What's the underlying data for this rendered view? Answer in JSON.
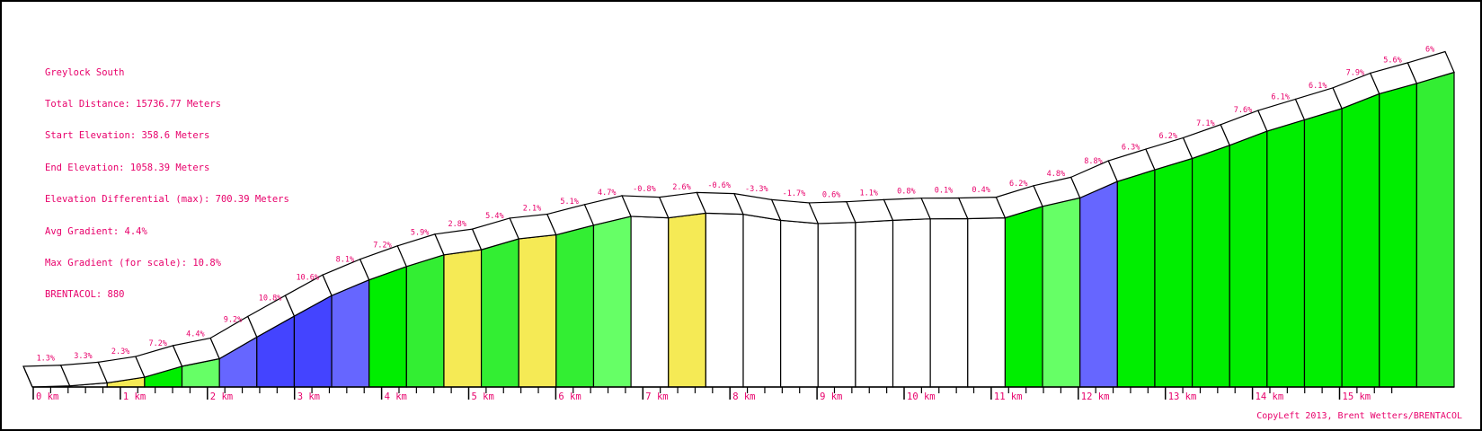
{
  "info": {
    "route_name": "Greylock South",
    "total_distance": "Total Distance: 15736.77 Meters",
    "start_elevation": "Start Elevation: 358.6 Meters",
    "end_elevation": "End Elevation: 1058.39 Meters",
    "elevation_diff": "Elevation Differential (max): 700.39 Meters",
    "avg_gradient": "Avg Gradient: 4.4%",
    "max_gradient": "Max Gradient (for scale): 10.8%",
    "brentacol": "BRENTACOL: 880"
  },
  "footer": "CopyLeft 2013, Brent Wetters/BRENTACOL",
  "colors": {
    "label": "#e8006b",
    "white": "#ffffff",
    "yellow": "#f5ea55",
    "green": "#00ee00",
    "light_green": "#66ff66",
    "mid_green": "#33ee33",
    "blue": "#6666ff",
    "dark_blue": "#4444ff"
  },
  "chart_data": {
    "type": "area",
    "xlabel": "",
    "ylabel": "",
    "x_unit": "km",
    "xlim": [
      0,
      15.74
    ],
    "x_tick_labels": [
      "0 km",
      "1 km",
      "2 km",
      "3 km",
      "4 km",
      "5 km",
      "6 km",
      "7 km",
      "8 km",
      "9 km",
      "10 km",
      "11 km",
      "12 km",
      "13 km",
      "14 km",
      "15 km"
    ],
    "segments": [
      {
        "gradient": "1.3%",
        "elev": 0.0,
        "color": "white"
      },
      {
        "gradient": "3.3%",
        "elev": 0.006,
        "color": "white"
      },
      {
        "gradient": "2.3%",
        "elev": 0.022,
        "color": "yellow"
      },
      {
        "gradient": "7.2%",
        "elev": 0.052,
        "color": "green"
      },
      {
        "gradient": "4.4%",
        "elev": 0.11,
        "color": "light_green"
      },
      {
        "gradient": "9.2%",
        "elev": 0.15,
        "color": "blue"
      },
      {
        "gradient": "10.8%",
        "elev": 0.265,
        "color": "dark_blue"
      },
      {
        "gradient": "10.6%",
        "elev": 0.376,
        "color": "dark_blue"
      },
      {
        "gradient": "8.1%",
        "elev": 0.485,
        "color": "blue"
      },
      {
        "gradient": "7.2%",
        "elev": 0.568,
        "color": "green"
      },
      {
        "gradient": "5.9%",
        "elev": 0.639,
        "color": "mid_green"
      },
      {
        "gradient": "2.8%",
        "elev": 0.701,
        "color": "yellow"
      },
      {
        "gradient": "5.4%",
        "elev": 0.728,
        "color": "mid_green"
      },
      {
        "gradient": "2.1%",
        "elev": 0.786,
        "color": "yellow"
      },
      {
        "gradient": "5.1%",
        "elev": 0.807,
        "color": "mid_green"
      },
      {
        "gradient": "4.7%",
        "elev": 0.858,
        "color": "light_green"
      },
      {
        "gradient": "-0.8%",
        "elev": 0.905,
        "color": "white"
      },
      {
        "gradient": "2.6%",
        "elev": 0.897,
        "color": "yellow"
      },
      {
        "gradient": "-0.6%",
        "elev": 0.922,
        "color": "white"
      },
      {
        "gradient": "-3.3%",
        "elev": 0.916,
        "color": "white"
      },
      {
        "gradient": "-1.7%",
        "elev": 0.884,
        "color": "white"
      },
      {
        "gradient": "0.6%",
        "elev": 0.867,
        "color": "white"
      },
      {
        "gradient": "1.1%",
        "elev": 0.873,
        "color": "white"
      },
      {
        "gradient": "0.8%",
        "elev": 0.884,
        "color": "white"
      },
      {
        "gradient": "0.1%",
        "elev": 0.892,
        "color": "white"
      },
      {
        "gradient": "0.4%",
        "elev": 0.893,
        "color": "white"
      },
      {
        "gradient": "6.2%",
        "elev": 0.897,
        "color": "green"
      },
      {
        "gradient": "4.8%",
        "elev": 0.958,
        "color": "light_green"
      },
      {
        "gradient": "8.8%",
        "elev": 1.003,
        "color": "blue"
      },
      {
        "gradient": "6.3%",
        "elev": 1.09,
        "color": "green"
      },
      {
        "gradient": "6.2%",
        "elev": 1.152,
        "color": "green"
      },
      {
        "gradient": "7.1%",
        "elev": 1.212,
        "color": "green"
      },
      {
        "gradient": "7.6%",
        "elev": 1.282,
        "color": "green"
      },
      {
        "gradient": "6.1%",
        "elev": 1.357,
        "color": "green"
      },
      {
        "gradient": "6.1%",
        "elev": 1.417,
        "color": "green"
      },
      {
        "gradient": "7.9%",
        "elev": 1.477,
        "color": "green"
      },
      {
        "gradient": "5.6%",
        "elev": 1.555,
        "color": "green"
      },
      {
        "gradient": "6%",
        "elev": 1.61,
        "color": "mid_green"
      }
    ],
    "end_elev": 1.669
  }
}
